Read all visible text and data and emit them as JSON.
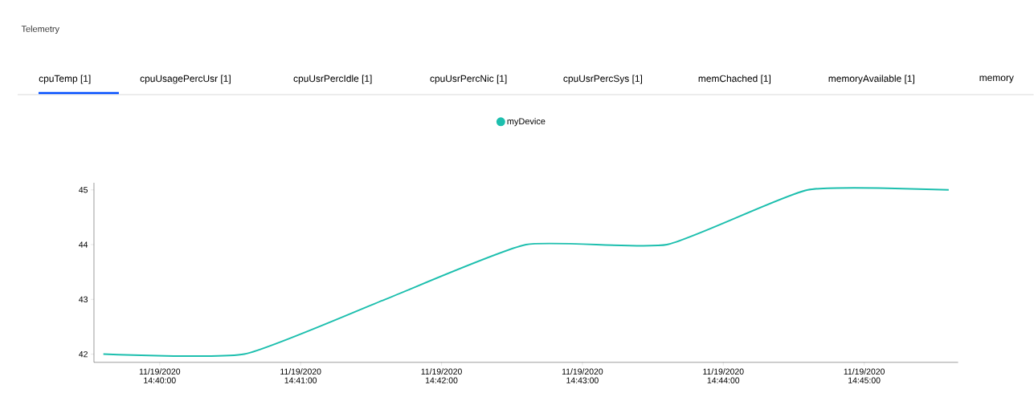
{
  "chart_data": {
    "type": "line",
    "title": "Telemetry",
    "annotations": [
      "cpuTemp [1]",
      "cpuUsagePercUsr [1]",
      "cpuUsrPercIdle [1]",
      "cpuUsrPercNic [1]",
      "cpuUsrPercSys [1]",
      "memChached [1]",
      "memoryAvailable [1]",
      "memory"
    ],
    "x": [
      "2020-11-19T14:39:36",
      "2020-11-19T14:40:36",
      "2020-11-19T14:41:36",
      "2020-11-19T14:42:36",
      "2020-11-19T14:43:36",
      "2020-11-19T14:44:36",
      "2020-11-19T14:45:36"
    ],
    "series": [
      {
        "name": "myDevice",
        "color": "#1dbfae",
        "values": [
          42,
          42,
          43,
          44,
          44,
          45,
          45
        ]
      }
    ],
    "xlim": [
      "2020-11-19T14:39:32",
      "2020-11-19T14:45:40"
    ],
    "ylim": [
      41.85,
      45.13
    ],
    "xticks": [
      {
        "value": "2020-11-19T14:40",
        "label": "11/19/2020 14:40:00"
      },
      {
        "value": "2020-11-19T14:41",
        "label": "11/19/2020 14:41:00"
      },
      {
        "value": "2020-11-19T14:42",
        "label": "11/19/2020 14:42:00"
      },
      {
        "value": "2020-11-19T14:43",
        "label": "11/19/2020 14:43:00"
      },
      {
        "value": "2020-11-19T14:44",
        "label": "11/19/2020 14:44:00"
      },
      {
        "value": "2020-11-19T14:45",
        "label": "11/19/2020 14:45:00"
      }
    ],
    "yticks": [
      42,
      43,
      44,
      45
    ],
    "legend": "top",
    "grid": false,
    "marker": "none",
    "line_style": "solid"
  }
}
